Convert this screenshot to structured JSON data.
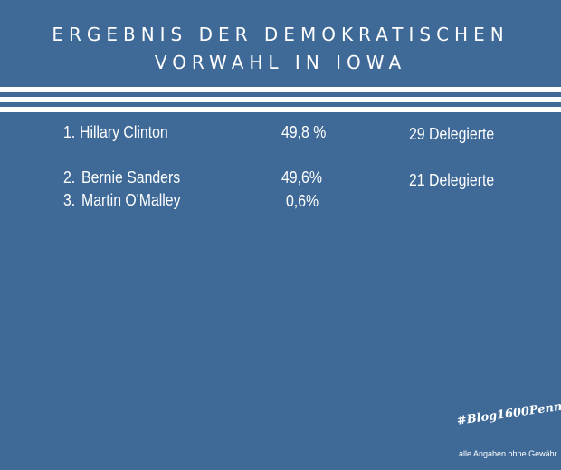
{
  "title_line1": "ERGEBNIS DER DEMOKRATISCHEN",
  "title_line2": "VORWAHL IN IOWA",
  "results": [
    {
      "rank": "1.",
      "name": "Hillary Clinton",
      "percent": "49,8 %",
      "delegates": "29 Delegierte"
    },
    {
      "rank": "2.",
      "name": "Bernie Sanders",
      "percent": "49,6%",
      "delegates": "21 Delegierte"
    },
    {
      "rank": "3.",
      "name": "Martin O'Malley",
      "percent": "0,6%",
      "delegates": ""
    }
  ],
  "brand_tag": "#Blog1600Penn",
  "disclaimer": "alle Angaben ohne Gewähr"
}
